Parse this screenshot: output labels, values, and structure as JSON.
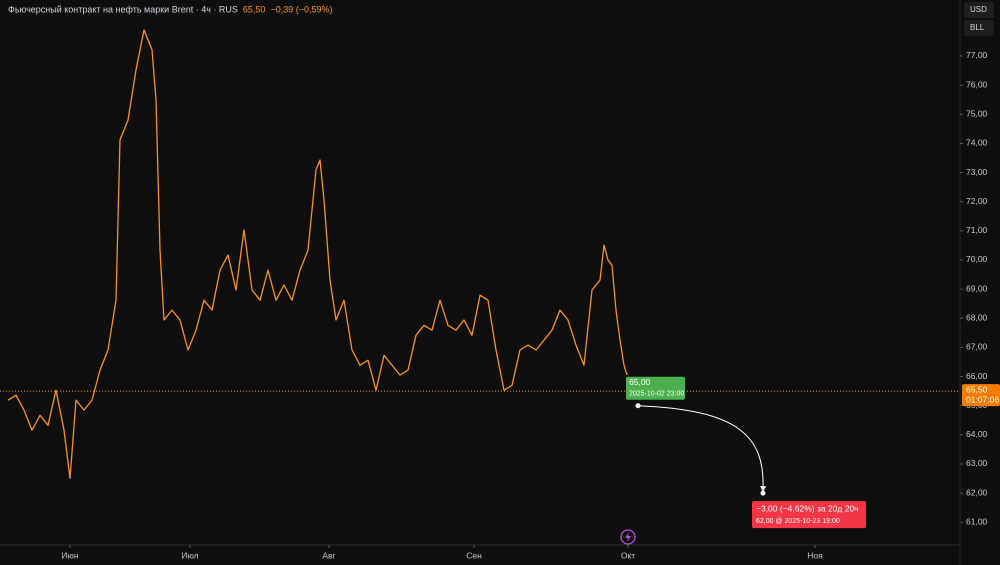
{
  "chart_data": {
    "type": "line",
    "title": "Фьючерсный контракт на нефть марки Brent · 4ч · RUS",
    "price_label": "65,50",
    "change_label": "−0,39 (−0,59%)",
    "currency": "USD",
    "unit": "BLL",
    "color": "#f7931a",
    "x": [
      8,
      16,
      24,
      32,
      40,
      48,
      56,
      64,
      70,
      76,
      84,
      92,
      100,
      108,
      116,
      120,
      128,
      136,
      144,
      152,
      156,
      160,
      164,
      172,
      180,
      188,
      196,
      204,
      212,
      220,
      228,
      236,
      244,
      252,
      260,
      268,
      276,
      284,
      292,
      300,
      308,
      316,
      320,
      324,
      330,
      336,
      344,
      352,
      360,
      368,
      376,
      384,
      392,
      400,
      408,
      416,
      424,
      432,
      440,
      448,
      456,
      464,
      472,
      480,
      488,
      496,
      504,
      512,
      520,
      528,
      536,
      544,
      552,
      560,
      568,
      576,
      584,
      592,
      600,
      604,
      608,
      612,
      616,
      620,
      624,
      627
    ],
    "values": [
      65.19,
      65.36,
      64.85,
      64.16,
      64.67,
      64.33,
      65.53,
      64.16,
      62.51,
      65.19,
      64.85,
      65.19,
      66.22,
      66.91,
      68.62,
      74.12,
      74.8,
      76.52,
      77.89,
      77.21,
      75.49,
      70.34,
      67.94,
      68.28,
      67.94,
      66.91,
      67.59,
      68.62,
      68.28,
      69.65,
      70.17,
      68.97,
      71.03,
      68.97,
      68.62,
      69.65,
      68.62,
      69.14,
      68.62,
      69.65,
      70.34,
      73.09,
      73.43,
      72.06,
      69.31,
      67.94,
      68.62,
      66.91,
      66.39,
      66.56,
      65.53,
      66.73,
      66.39,
      66.05,
      66.22,
      67.42,
      67.76,
      67.59,
      68.62,
      67.76,
      67.59,
      67.94,
      67.42,
      68.79,
      68.62,
      66.91,
      65.53,
      65.7,
      66.91,
      67.08,
      66.91,
      67.25,
      67.59,
      68.28,
      67.94,
      67.08,
      66.39,
      68.97,
      69.31,
      70.51,
      70.0,
      69.82,
      68.28,
      67.25,
      66.39,
      66.05
    ],
    "xlim": [
      0,
      960
    ],
    "xticks": [
      {
        "value": 70,
        "label": "Июн"
      },
      {
        "value": 190,
        "label": "Июл"
      },
      {
        "value": 329,
        "label": "Авг"
      },
      {
        "value": 474,
        "label": "Сен"
      },
      {
        "value": 628,
        "label": "Окт"
      },
      {
        "value": 815,
        "label": "Ноя"
      }
    ],
    "ylim": [
      60.22,
      78.92
    ],
    "yticks": [
      {
        "value": 61,
        "label": "61,00"
      },
      {
        "value": 62,
        "label": "62,00"
      },
      {
        "value": 63,
        "label": "63,00"
      },
      {
        "value": 64,
        "label": "64,00"
      },
      {
        "value": 65,
        "label": "65,00"
      },
      {
        "value": 66,
        "label": "66,00"
      },
      {
        "value": 67,
        "label": "67,00"
      },
      {
        "value": 68,
        "label": "68,00"
      },
      {
        "value": 69,
        "label": "69,00"
      },
      {
        "value": 70,
        "label": "70,00"
      },
      {
        "value": 71,
        "label": "71,00"
      },
      {
        "value": 72,
        "label": "72,00"
      },
      {
        "value": 73,
        "label": "73,00"
      },
      {
        "value": 74,
        "label": "74,00"
      },
      {
        "value": 75,
        "label": "75,00"
      },
      {
        "value": 76,
        "label": "76,00"
      },
      {
        "value": 77,
        "label": "77,00"
      }
    ],
    "last_price": {
      "value": 65.5,
      "label": "65,50",
      "timer": "01:07:06"
    },
    "start": {
      "x": 638,
      "value": 65,
      "label": "65,00",
      "date": "2025-10-02 23:00"
    },
    "end": {
      "x": 763,
      "value": 62,
      "change_label": "−3,00 (−4,62%) за 20д 20ч",
      "label": "62,00 @ 2025-10-23 19:00"
    }
  }
}
